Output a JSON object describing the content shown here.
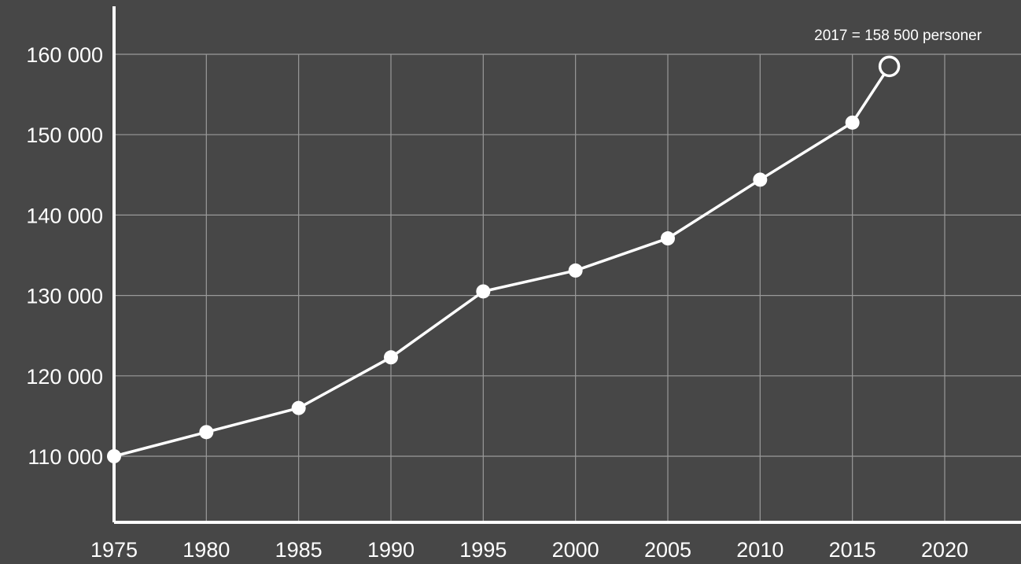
{
  "chart_data": {
    "type": "line",
    "title": "",
    "xlabel": "",
    "ylabel": "",
    "x_ticks": [
      "1975",
      "1980",
      "1985",
      "1990",
      "1995",
      "2000",
      "2005",
      "2010",
      "2015",
      "2020"
    ],
    "y_ticks": [
      "110 000",
      "120 000",
      "130 000",
      "140 000",
      "150 000",
      "160 000"
    ],
    "xlim": [
      1975,
      2020
    ],
    "ylim": [
      104000,
      166000
    ],
    "grid": true,
    "series": [
      {
        "x": [
          1975,
          1980,
          1985,
          1990,
          1995,
          2000,
          2005,
          2010,
          2015,
          2017
        ],
        "y": [
          110000,
          113000,
          116000,
          122300,
          130500,
          133100,
          137100,
          144400,
          151500,
          158500
        ],
        "open_marker_x": [
          2017
        ]
      }
    ],
    "annotation": {
      "text": "2017 = 158 500 personer",
      "x": 2017,
      "y": 158500
    },
    "colors": {
      "background": "#474747",
      "grid": "#9a9a9a",
      "line": "#ffffff",
      "text": "#ffffff"
    }
  }
}
